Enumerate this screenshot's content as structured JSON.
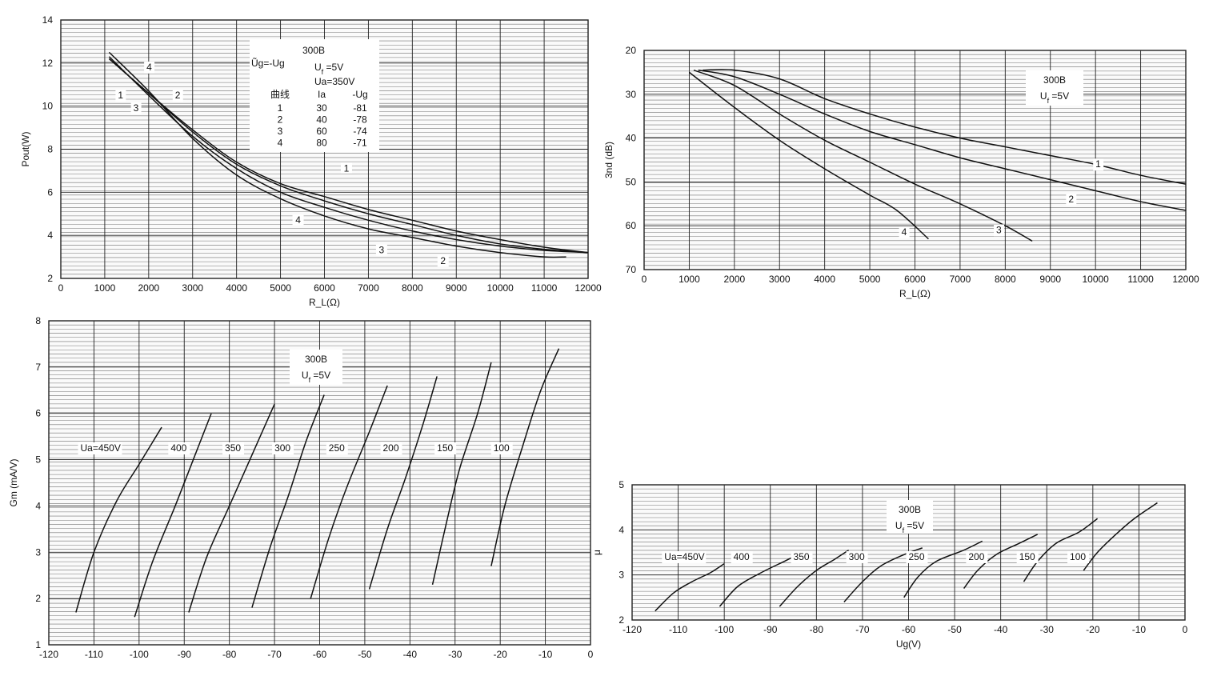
{
  "chart_data": [
    {
      "id": "pout",
      "type": "line",
      "xlabel": "R_L(Ω)",
      "ylabel": "Pout(W)",
      "xlim": [
        0,
        12000
      ],
      "ylim": [
        2,
        14
      ],
      "xticks": [
        0,
        1000,
        2000,
        3000,
        4000,
        5000,
        6000,
        7000,
        8000,
        9000,
        10000,
        11000,
        12000
      ],
      "yticks": [
        2,
        4,
        6,
        8,
        10,
        12,
        14
      ],
      "grid": true,
      "legend": {
        "title": "300B",
        "left_note": "Ũg=-Ug",
        "lines": [
          "Uf =5V",
          "Ua=350V"
        ],
        "columns": [
          "曲线",
          "Ia",
          "-Ug"
        ],
        "rows": [
          [
            "1",
            "30",
            "-81"
          ],
          [
            "2",
            "40",
            "-78"
          ],
          [
            "3",
            "60",
            "-74"
          ],
          [
            "4",
            "80",
            "-71"
          ]
        ]
      },
      "series": [
        {
          "name": "1",
          "x": [
            1100,
            2000,
            3000,
            4000,
            5000,
            6000,
            7000,
            8000,
            9000,
            10000,
            11000,
            12000
          ],
          "y": [
            12.2,
            10.6,
            8.9,
            7.4,
            6.4,
            5.8,
            5.2,
            4.7,
            4.2,
            3.8,
            3.45,
            3.2
          ],
          "label": {
            "text": "1",
            "x": 6500,
            "y": 7.0
          }
        },
        {
          "name": "2",
          "x": [
            1100,
            2000,
            3000,
            4000,
            5000,
            6000,
            7000,
            8000,
            9000,
            10000,
            11000,
            12000
          ],
          "y": [
            12.2,
            10.6,
            8.8,
            7.3,
            6.3,
            5.6,
            5.0,
            4.5,
            4.0,
            3.6,
            3.35,
            3.2
          ],
          "label": {
            "text": "2",
            "x": 8700,
            "y": 2.7
          }
        },
        {
          "name": "3",
          "x": [
            1100,
            2000,
            3000,
            4000,
            5000,
            6000,
            7000,
            8000,
            9000,
            10000,
            11000,
            12000
          ],
          "y": [
            12.3,
            10.5,
            8.6,
            7.1,
            6.0,
            5.3,
            4.7,
            4.2,
            3.8,
            3.5,
            3.3,
            3.2
          ],
          "label": {
            "text": "3",
            "x": 7300,
            "y": 3.2
          }
        },
        {
          "name": "4",
          "x": [
            1100,
            2000,
            3000,
            4000,
            5000,
            6000,
            7000,
            8000,
            9000,
            10000,
            11000,
            11500
          ],
          "y": [
            12.5,
            10.7,
            8.5,
            6.8,
            5.7,
            4.9,
            4.3,
            3.9,
            3.5,
            3.2,
            3.0,
            3.0
          ],
          "label": {
            "text": "4",
            "x": 5400,
            "y": 4.6
          }
        }
      ],
      "extra_labels": [
        {
          "text": "1",
          "x": 1300,
          "y": 10.4
        },
        {
          "text": "2",
          "x": 2600,
          "y": 10.4
        },
        {
          "text": "3",
          "x": 1650,
          "y": 9.8
        },
        {
          "text": "4",
          "x": 1950,
          "y": 11.7
        }
      ]
    },
    {
      "id": "h3",
      "type": "line",
      "xlabel": "R_L(Ω)",
      "ylabel": "3nd (dB)",
      "xlim": [
        0,
        12000
      ],
      "ylim": [
        20,
        70
      ],
      "y_inverted": true,
      "xticks": [
        0,
        1000,
        2000,
        3000,
        4000,
        5000,
        6000,
        7000,
        8000,
        9000,
        10000,
        11000,
        12000
      ],
      "yticks": [
        20,
        30,
        40,
        50,
        60,
        70
      ],
      "grid": true,
      "legend": {
        "title": "300B",
        "lines": [
          "Uf =5V"
        ]
      },
      "series": [
        {
          "name": "1",
          "x": [
            1300,
            2000,
            3000,
            4000,
            5000,
            6000,
            7000,
            8000,
            9000,
            10000,
            11000,
            12000
          ],
          "y": [
            24.5,
            24.5,
            26.5,
            31,
            34.5,
            37.5,
            40,
            42,
            44,
            46,
            48.5,
            50.5
          ]
        },
        {
          "name": "2",
          "x": [
            1200,
            2000,
            3000,
            4000,
            5000,
            6000,
            7000,
            8000,
            9000,
            10000,
            11000,
            12000
          ],
          "y": [
            24.5,
            26,
            30,
            34.5,
            38.5,
            41.5,
            44.5,
            47,
            49.5,
            52,
            54.5,
            56.5
          ]
        },
        {
          "name": "3",
          "x": [
            1100,
            2000,
            3000,
            4000,
            5000,
            6000,
            7000,
            8000,
            8600
          ],
          "y": [
            24.5,
            28,
            34.5,
            40.5,
            45.5,
            50.5,
            55,
            60,
            63.5
          ]
        },
        {
          "name": "4",
          "x": [
            1000,
            2000,
            3000,
            4000,
            5000,
            5600,
            6300
          ],
          "y": [
            25,
            33,
            40.5,
            47,
            53,
            56.5,
            63
          ]
        }
      ],
      "labels": [
        {
          "text": "1",
          "x": 10000,
          "y": 46.5
        },
        {
          "text": "2",
          "x": 9400,
          "y": 54.5
        },
        {
          "text": "3",
          "x": 7800,
          "y": 61.5
        },
        {
          "text": "4",
          "x": 5700,
          "y": 62
        }
      ]
    },
    {
      "id": "gm",
      "type": "line",
      "xlabel": "",
      "ylabel": "Gm (mA/V)",
      "xlim": [
        -120,
        0
      ],
      "ylim": [
        1,
        8
      ],
      "xticks": [
        -120,
        -110,
        -100,
        -90,
        -80,
        -70,
        -60,
        -50,
        -40,
        -30,
        -20,
        -10,
        0
      ],
      "yticks": [
        1,
        2,
        3,
        4,
        5,
        6,
        7,
        8
      ],
      "grid": true,
      "legend": {
        "title": "300B",
        "lines": [
          "Uf =5V"
        ]
      },
      "series": [
        {
          "name": "Ua=450V",
          "x": [
            -114,
            -110,
            -105,
            -100,
            -95
          ],
          "y": [
            1.7,
            3.0,
            4.1,
            4.9,
            5.7
          ]
        },
        {
          "name": "400",
          "x": [
            -101,
            -97,
            -92,
            -88,
            -84
          ],
          "y": [
            1.6,
            2.8,
            4.0,
            5.0,
            6.0
          ]
        },
        {
          "name": "350",
          "x": [
            -89,
            -85,
            -80,
            -75,
            -70
          ],
          "y": [
            1.7,
            2.9,
            4.0,
            5.1,
            6.2
          ]
        },
        {
          "name": "300",
          "x": [
            -75,
            -71,
            -67,
            -63,
            -59
          ],
          "y": [
            1.8,
            3.1,
            4.2,
            5.4,
            6.4
          ]
        },
        {
          "name": "250",
          "x": [
            -62,
            -58,
            -54,
            -49,
            -45
          ],
          "y": [
            2.0,
            3.3,
            4.4,
            5.6,
            6.6
          ]
        },
        {
          "name": "200",
          "x": [
            -49,
            -45,
            -41,
            -37,
            -34
          ],
          "y": [
            2.2,
            3.5,
            4.6,
            5.8,
            6.8
          ]
        },
        {
          "name": "150",
          "x": [
            -35,
            -32,
            -29,
            -25,
            -22
          ],
          "y": [
            2.3,
            3.6,
            4.8,
            6.0,
            7.1
          ]
        },
        {
          "name": "100",
          "x": [
            -22,
            -19,
            -15,
            -11,
            -7
          ],
          "y": [
            2.7,
            4.0,
            5.3,
            6.5,
            7.4
          ]
        }
      ],
      "labels": [
        {
          "text": "Ua=450V",
          "x": -113,
          "y": 5.2
        },
        {
          "text": "400",
          "x": -93,
          "y": 5.2
        },
        {
          "text": "350",
          "x": -81,
          "y": 5.2
        },
        {
          "text": "300",
          "x": -70,
          "y": 5.2
        },
        {
          "text": "250",
          "x": -58,
          "y": 5.2
        },
        {
          "text": "200",
          "x": -46,
          "y": 5.2
        },
        {
          "text": "150",
          "x": -34,
          "y": 5.2
        },
        {
          "text": "100",
          "x": -21.5,
          "y": 5.2
        }
      ]
    },
    {
      "id": "mu",
      "type": "line",
      "xlabel": "Ug(V)",
      "ylabel": "μ",
      "xlim": [
        -120,
        0
      ],
      "ylim": [
        2,
        5
      ],
      "xticks": [
        -120,
        -110,
        -100,
        -90,
        -80,
        -70,
        -60,
        -50,
        -40,
        -30,
        -20,
        -10,
        0
      ],
      "yticks": [
        2,
        3,
        4,
        5
      ],
      "grid": true,
      "legend": {
        "title": "300B",
        "lines": [
          "Uf =5V"
        ]
      },
      "series": [
        {
          "name": "Ua=450V",
          "x": [
            -115,
            -111,
            -107,
            -103,
            -100
          ],
          "y": [
            2.2,
            2.6,
            2.85,
            3.05,
            3.25
          ]
        },
        {
          "name": "400",
          "x": [
            -101,
            -97,
            -92,
            -87,
            -83
          ],
          "y": [
            2.3,
            2.75,
            3.05,
            3.3,
            3.5
          ]
        },
        {
          "name": "350",
          "x": [
            -88,
            -84,
            -80,
            -76,
            -73
          ],
          "y": [
            2.3,
            2.75,
            3.1,
            3.35,
            3.55
          ]
        },
        {
          "name": "300",
          "x": [
            -74,
            -70,
            -66,
            -61,
            -57
          ],
          "y": [
            2.4,
            2.85,
            3.2,
            3.45,
            3.6
          ]
        },
        {
          "name": "250",
          "x": [
            -61,
            -58,
            -54,
            -48,
            -44
          ],
          "y": [
            2.5,
            2.95,
            3.3,
            3.55,
            3.75
          ]
        },
        {
          "name": "200",
          "x": [
            -48,
            -45,
            -41,
            -36,
            -32
          ],
          "y": [
            2.7,
            3.1,
            3.45,
            3.7,
            3.9
          ]
        },
        {
          "name": "150",
          "x": [
            -35,
            -32,
            -28,
            -23,
            -19
          ],
          "y": [
            2.85,
            3.3,
            3.7,
            3.95,
            4.25
          ]
        },
        {
          "name": "100",
          "x": [
            -22,
            -19,
            -15,
            -11,
            -6
          ],
          "y": [
            3.1,
            3.5,
            3.9,
            4.25,
            4.6
          ]
        }
      ],
      "labels": [
        {
          "text": "Ua=450V",
          "x": -113,
          "y": 3.35
        },
        {
          "text": "400",
          "x": -98,
          "y": 3.35
        },
        {
          "text": "350",
          "x": -85,
          "y": 3.35
        },
        {
          "text": "300",
          "x": -73,
          "y": 3.35
        },
        {
          "text": "250",
          "x": -60,
          "y": 3.35
        },
        {
          "text": "200",
          "x": -47,
          "y": 3.35
        },
        {
          "text": "150",
          "x": -36,
          "y": 3.35
        },
        {
          "text": "100",
          "x": -25,
          "y": 3.35
        }
      ]
    }
  ]
}
